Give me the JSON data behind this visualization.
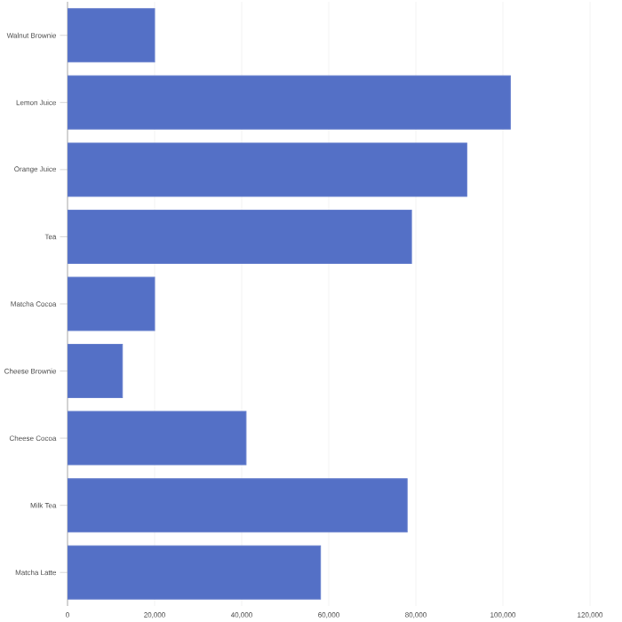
{
  "chart_data": {
    "type": "bar",
    "orientation": "horizontal",
    "categories": [
      "Walnut Brownie",
      "Lemon Juice",
      "Orange Juice",
      "Tea",
      "Matcha Cocoa",
      "Cheese Brownie",
      "Cheese Cocoa",
      "Milk Tea",
      "Matcha Latte"
    ],
    "values": [
      20000,
      101700,
      91700,
      79000,
      20000,
      12600,
      41000,
      78000,
      58100
    ],
    "color": "#5470c6",
    "xlim": [
      0,
      120000
    ],
    "xticks": [
      {
        "value": 0,
        "label": "0"
      },
      {
        "value": 20000,
        "label": "20,000"
      },
      {
        "value": 40000,
        "label": "40,000"
      },
      {
        "value": 60000,
        "label": "60,000"
      },
      {
        "value": 80000,
        "label": "80,000"
      },
      {
        "value": 100000,
        "label": "100,000"
      },
      {
        "value": 120000,
        "label": "120,000"
      }
    ],
    "grid": "x"
  }
}
